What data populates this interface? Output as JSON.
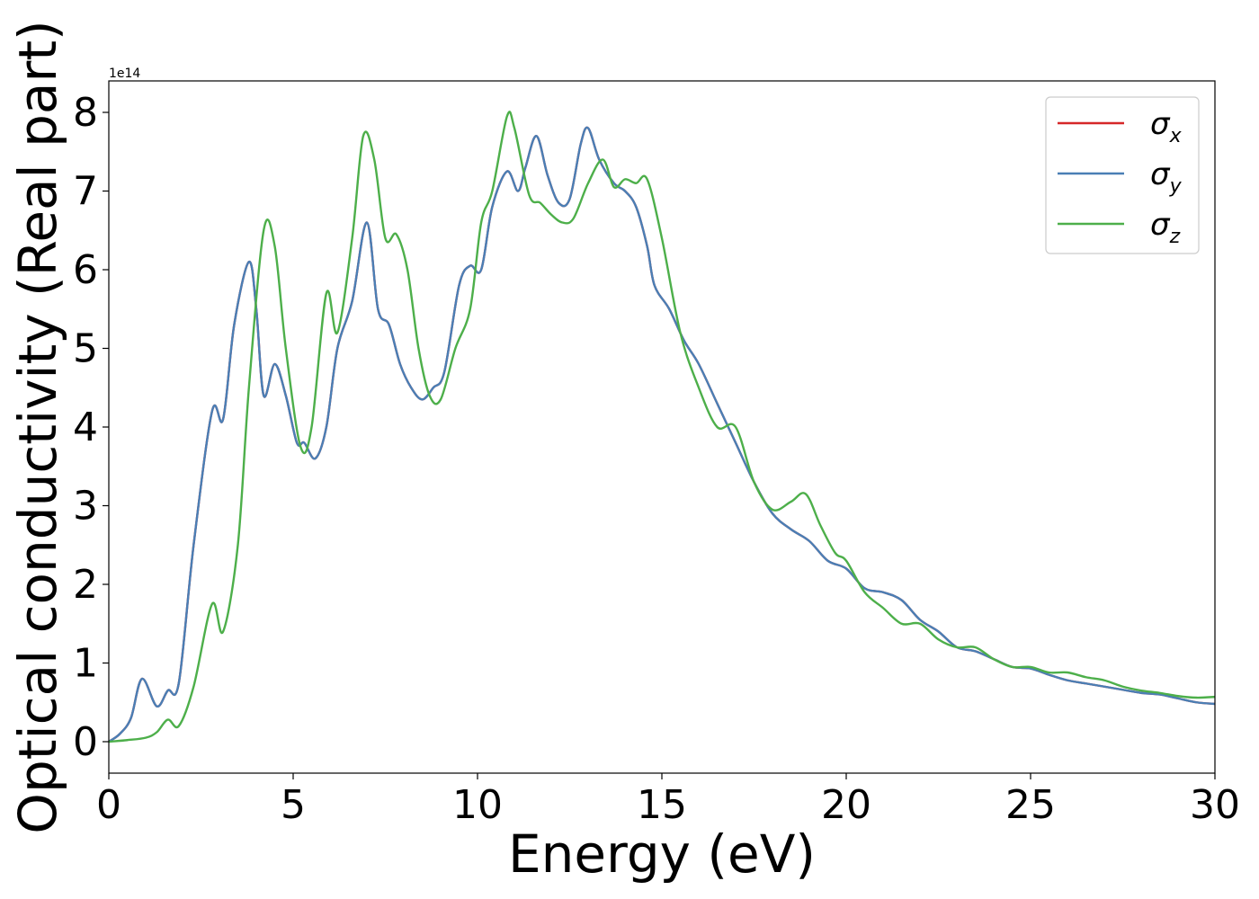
{
  "chart_data": {
    "type": "line",
    "xlabel": "Energy (eV)",
    "ylabel": "Optical conductivity (Real part)",
    "y_offset_label": "1e14",
    "xlim": [
      0,
      30
    ],
    "ylim": [
      -0.4,
      8.4
    ],
    "xticks": [
      0,
      5,
      10,
      15,
      20,
      25,
      30
    ],
    "yticks": [
      0,
      1,
      2,
      3,
      4,
      5,
      6,
      7,
      8
    ],
    "grid": false,
    "legend_position": "top-right",
    "series": [
      {
        "name": "σ",
        "subscript": "x",
        "color": "#d62728",
        "x": [
          0,
          0.3,
          0.6,
          0.9,
          1.3,
          1.6,
          1.9,
          2.3,
          2.8,
          3.1,
          3.4,
          3.8,
          4.0,
          4.2,
          4.5,
          4.8,
          5.1,
          5.3,
          5.6,
          5.9,
          6.2,
          6.6,
          7.0,
          7.3,
          7.6,
          7.9,
          8.2,
          8.5,
          8.8,
          9.1,
          9.5,
          9.8,
          10.1,
          10.4,
          10.8,
          11.1,
          11.3,
          11.6,
          11.9,
          12.2,
          12.5,
          12.8,
          13.0,
          13.3,
          13.7,
          14.0,
          14.3,
          14.6,
          14.8,
          15.2,
          15.6,
          16.0,
          16.5,
          17.0,
          17.5,
          18.0,
          18.5,
          19.0,
          19.5,
          20.0,
          20.5,
          21.0,
          21.5,
          22.0,
          22.5,
          23.0,
          23.5,
          24.0,
          24.5,
          25.0,
          25.5,
          26.0,
          26.5,
          27.0,
          27.5,
          28.0,
          28.5,
          29.0,
          29.5,
          30.0
        ],
        "values": [
          0,
          0.1,
          0.3,
          0.8,
          0.45,
          0.65,
          0.75,
          2.5,
          4.2,
          4.1,
          5.3,
          6.1,
          5.5,
          4.4,
          4.8,
          4.4,
          3.8,
          3.8,
          3.6,
          4.0,
          5.0,
          5.6,
          6.6,
          5.5,
          5.3,
          4.8,
          4.5,
          4.35,
          4.5,
          4.7,
          5.8,
          6.05,
          6.0,
          6.8,
          7.25,
          7.0,
          7.3,
          7.7,
          7.2,
          6.85,
          6.9,
          7.6,
          7.8,
          7.4,
          7.1,
          7.0,
          6.8,
          6.3,
          5.8,
          5.5,
          5.1,
          4.8,
          4.3,
          3.8,
          3.3,
          2.9,
          2.7,
          2.55,
          2.3,
          2.2,
          1.95,
          1.9,
          1.8,
          1.55,
          1.4,
          1.2,
          1.15,
          1.05,
          0.95,
          0.93,
          0.85,
          0.78,
          0.74,
          0.7,
          0.66,
          0.62,
          0.6,
          0.55,
          0.5,
          0.48
        ]
      },
      {
        "name": "σ",
        "subscript": "y",
        "color": "#4a7fb5",
        "x": [
          0,
          0.3,
          0.6,
          0.9,
          1.3,
          1.6,
          1.9,
          2.3,
          2.8,
          3.1,
          3.4,
          3.8,
          4.0,
          4.2,
          4.5,
          4.8,
          5.1,
          5.3,
          5.6,
          5.9,
          6.2,
          6.6,
          7.0,
          7.3,
          7.6,
          7.9,
          8.2,
          8.5,
          8.8,
          9.1,
          9.5,
          9.8,
          10.1,
          10.4,
          10.8,
          11.1,
          11.3,
          11.6,
          11.9,
          12.2,
          12.5,
          12.8,
          13.0,
          13.3,
          13.7,
          14.0,
          14.3,
          14.6,
          14.8,
          15.2,
          15.6,
          16.0,
          16.5,
          17.0,
          17.5,
          18.0,
          18.5,
          19.0,
          19.5,
          20.0,
          20.5,
          21.0,
          21.5,
          22.0,
          22.5,
          23.0,
          23.5,
          24.0,
          24.5,
          25.0,
          25.5,
          26.0,
          26.5,
          27.0,
          27.5,
          28.0,
          28.5,
          29.0,
          29.5,
          30.0
        ],
        "values": [
          0,
          0.1,
          0.3,
          0.8,
          0.45,
          0.65,
          0.75,
          2.5,
          4.2,
          4.1,
          5.3,
          6.1,
          5.5,
          4.4,
          4.8,
          4.4,
          3.8,
          3.8,
          3.6,
          4.0,
          5.0,
          5.6,
          6.6,
          5.5,
          5.3,
          4.8,
          4.5,
          4.35,
          4.5,
          4.7,
          5.8,
          6.05,
          6.0,
          6.8,
          7.25,
          7.0,
          7.3,
          7.7,
          7.2,
          6.85,
          6.9,
          7.6,
          7.8,
          7.4,
          7.1,
          7.0,
          6.8,
          6.3,
          5.8,
          5.5,
          5.1,
          4.8,
          4.3,
          3.8,
          3.3,
          2.9,
          2.7,
          2.55,
          2.3,
          2.2,
          1.95,
          1.9,
          1.8,
          1.55,
          1.4,
          1.2,
          1.15,
          1.05,
          0.95,
          0.93,
          0.85,
          0.78,
          0.74,
          0.7,
          0.66,
          0.62,
          0.6,
          0.55,
          0.5,
          0.48
        ]
      },
      {
        "name": "σ",
        "subscript": "z",
        "color": "#4daf4a",
        "x": [
          0,
          0.5,
          1.0,
          1.3,
          1.6,
          1.9,
          2.3,
          2.8,
          3.1,
          3.5,
          3.8,
          4.2,
          4.5,
          4.8,
          5.2,
          5.5,
          5.9,
          6.2,
          6.6,
          6.9,
          7.2,
          7.5,
          7.8,
          8.1,
          8.4,
          8.7,
          9.0,
          9.4,
          9.8,
          10.1,
          10.4,
          10.8,
          11.0,
          11.4,
          11.7,
          12.0,
          12.3,
          12.6,
          13.0,
          13.4,
          13.7,
          14.0,
          14.3,
          14.6,
          15.0,
          15.5,
          16.0,
          16.5,
          17.0,
          17.5,
          18.0,
          18.5,
          18.9,
          19.3,
          19.7,
          20.0,
          20.5,
          21.0,
          21.5,
          22.0,
          22.5,
          23.0,
          23.5,
          24.0,
          24.5,
          25.0,
          25.5,
          26.0,
          26.5,
          27.0,
          27.5,
          28.0,
          28.5,
          29.0,
          29.5,
          30.0
        ],
        "values": [
          0,
          0.02,
          0.05,
          0.12,
          0.28,
          0.2,
          0.7,
          1.75,
          1.4,
          2.5,
          4.5,
          6.5,
          6.3,
          5.0,
          3.75,
          4.0,
          5.7,
          5.2,
          6.4,
          7.7,
          7.4,
          6.4,
          6.45,
          6.0,
          5.0,
          4.4,
          4.35,
          5.0,
          5.5,
          6.6,
          7.0,
          7.95,
          7.8,
          6.95,
          6.85,
          6.7,
          6.6,
          6.65,
          7.1,
          7.4,
          7.05,
          7.15,
          7.1,
          7.15,
          6.4,
          5.2,
          4.5,
          4.0,
          4.0,
          3.3,
          2.95,
          3.05,
          3.15,
          2.75,
          2.4,
          2.3,
          1.9,
          1.7,
          1.5,
          1.5,
          1.3,
          1.2,
          1.2,
          1.05,
          0.95,
          0.95,
          0.88,
          0.88,
          0.82,
          0.78,
          0.7,
          0.65,
          0.62,
          0.58,
          0.56,
          0.57
        ]
      }
    ]
  }
}
